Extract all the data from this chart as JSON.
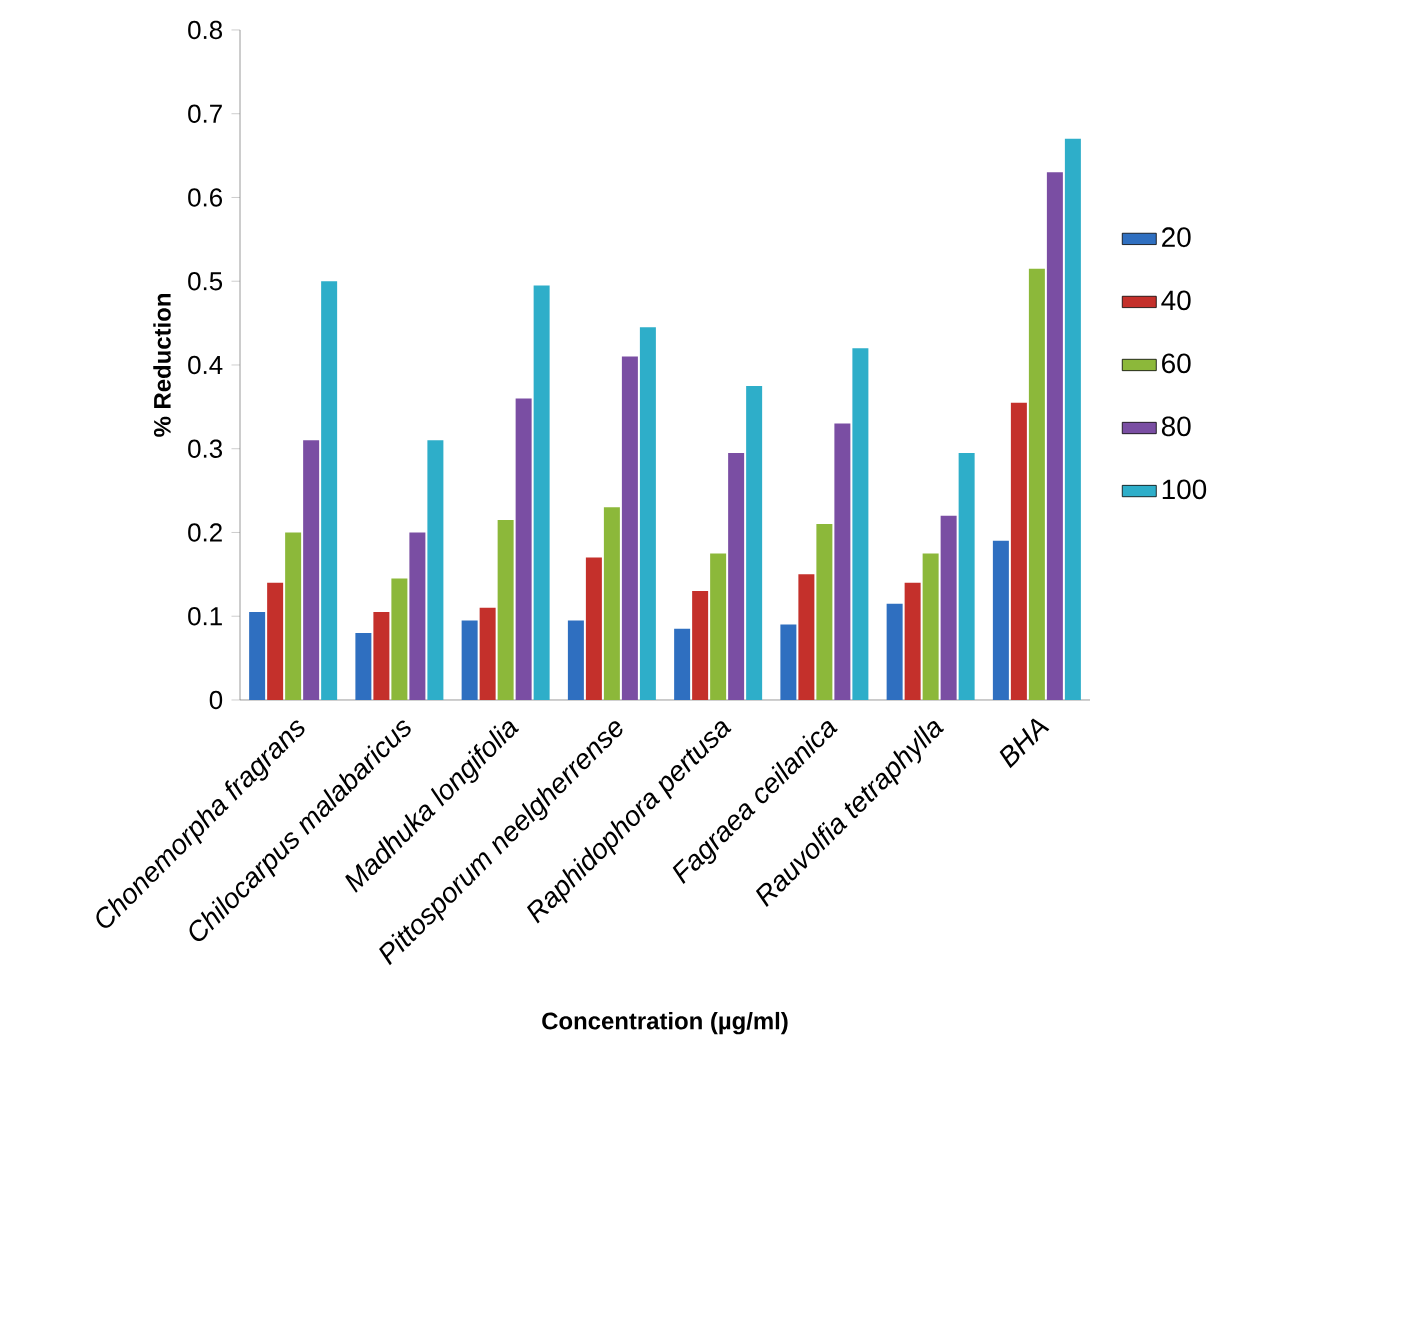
{
  "chart_data": {
    "type": "bar",
    "ylabel": "% Reduction",
    "xlabel": "Concentration (µg/ml)",
    "categories": [
      "Chonemorpha fragrans",
      "Chilocarpus malabaricus",
      "Madhuka longifolia",
      "Pittosporum neelgherrense",
      "Raphidophora pertusa",
      "Fagraea ceilanica",
      "Rauvolfia tetraphylla",
      "BHA"
    ],
    "series": [
      {
        "name": "20",
        "color": "#2f6fc0",
        "values": [
          0.105,
          0.08,
          0.095,
          0.095,
          0.085,
          0.09,
          0.115,
          0.19
        ]
      },
      {
        "name": "40",
        "color": "#c4302b",
        "values": [
          0.14,
          0.105,
          0.11,
          0.17,
          0.13,
          0.15,
          0.14,
          0.355
        ]
      },
      {
        "name": "60",
        "color": "#8cb83a",
        "values": [
          0.2,
          0.145,
          0.215,
          0.23,
          0.175,
          0.21,
          0.175,
          0.515
        ]
      },
      {
        "name": "80",
        "color": "#7a4ea3",
        "values": [
          0.31,
          0.2,
          0.36,
          0.41,
          0.295,
          0.33,
          0.22,
          0.63
        ]
      },
      {
        "name": "100",
        "color": "#2eaec9",
        "values": [
          0.5,
          0.31,
          0.495,
          0.445,
          0.375,
          0.42,
          0.295,
          0.67
        ]
      }
    ],
    "ylim": [
      0,
      0.8
    ],
    "yticks": [
      0,
      0.1,
      0.2,
      0.3,
      0.4,
      0.5,
      0.6,
      0.7,
      0.8
    ],
    "grid": false,
    "legend": "right"
  }
}
